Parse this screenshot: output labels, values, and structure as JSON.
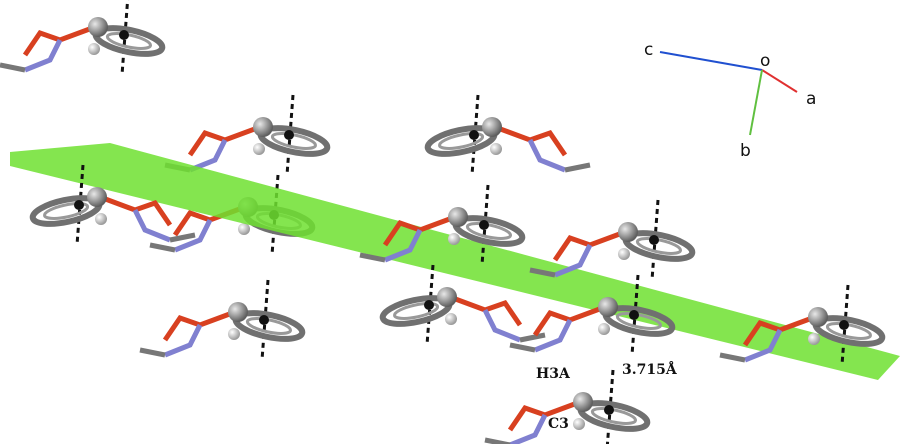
{
  "axis_labels": [
    "c",
    "o",
    "a",
    "b"
  ],
  "annotations": [
    "H3A",
    "3.715Å",
    "C3"
  ]
}
